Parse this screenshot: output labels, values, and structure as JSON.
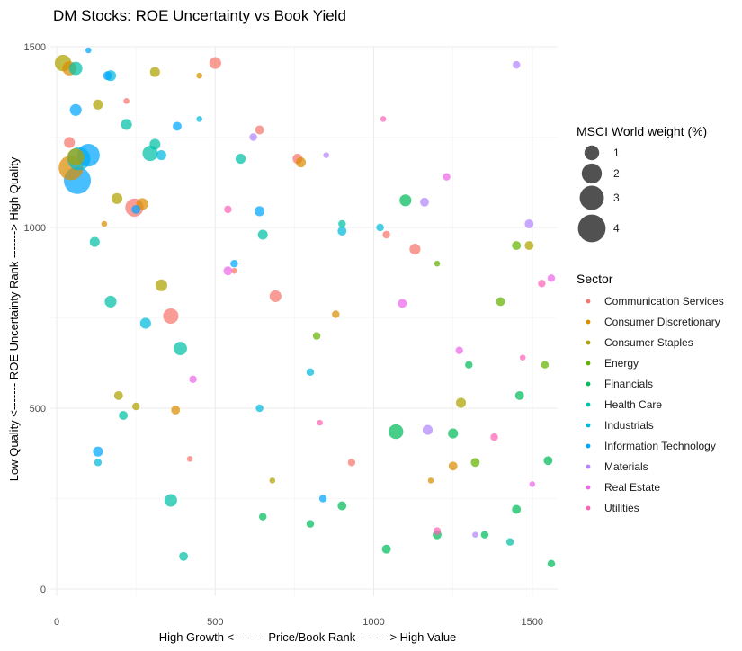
{
  "chart_data": {
    "type": "scatter",
    "title": "DM Stocks: ROE Uncertainty vs Book Yield",
    "xlabel": "High Growth <-------- Price/Book Rank --------> High Value",
    "ylabel": "Low Quality <------- ROE Uncertainty Rank -------> High Quality",
    "xlim": [
      -20,
      1580
    ],
    "ylim": [
      -20,
      1500
    ],
    "x_ticks": [
      0,
      500,
      1000,
      1500
    ],
    "y_ticks": [
      0,
      500,
      1000,
      1500
    ],
    "grid": true,
    "size_legend": {
      "title": "MSCI World weight (%)",
      "values": [
        1,
        2,
        3,
        4
      ]
    },
    "color_legend": {
      "title": "Sector",
      "placement": "right"
    },
    "series": [
      {
        "name": "Communication Services",
        "color": "#F8766D",
        "points": [
          [
            245,
            1055,
            1.6
          ],
          [
            500,
            1455,
            0.6
          ],
          [
            360,
            755,
            1.1
          ],
          [
            690,
            810,
            0.6
          ],
          [
            1130,
            940,
            0.5
          ],
          [
            40,
            1235,
            0.5
          ],
          [
            760,
            1190,
            0.4
          ],
          [
            640,
            1270,
            0.3
          ],
          [
            930,
            350,
            0.2
          ],
          [
            1040,
            980,
            0.2
          ],
          [
            420,
            360,
            0.1
          ],
          [
            220,
            1350,
            0.1
          ],
          [
            560,
            880,
            0.1
          ]
        ]
      },
      {
        "name": "Consumer Discretionary",
        "color": "#DB8E00",
        "points": [
          [
            45,
            1165,
            3.1
          ],
          [
            40,
            1440,
            0.9
          ],
          [
            270,
            1065,
            0.6
          ],
          [
            770,
            1180,
            0.4
          ],
          [
            1250,
            340,
            0.3
          ],
          [
            375,
            495,
            0.3
          ],
          [
            880,
            760,
            0.2
          ],
          [
            1180,
            300,
            0.1
          ],
          [
            450,
            1420,
            0.1
          ],
          [
            150,
            1010,
            0.1
          ]
        ]
      },
      {
        "name": "Consumer Staples",
        "color": "#AEA200",
        "points": [
          [
            20,
            1455,
            1.3
          ],
          [
            60,
            1195,
            1.4
          ],
          [
            190,
            1080,
            0.5
          ],
          [
            330,
            840,
            0.6
          ],
          [
            310,
            1430,
            0.4
          ],
          [
            130,
            1340,
            0.4
          ],
          [
            1275,
            515,
            0.4
          ],
          [
            1490,
            950,
            0.3
          ],
          [
            195,
            535,
            0.3
          ],
          [
            250,
            505,
            0.2
          ],
          [
            680,
            300,
            0.1
          ]
        ]
      },
      {
        "name": "Energy",
        "color": "#64B200",
        "points": [
          [
            1450,
            950,
            0.3
          ],
          [
            1400,
            795,
            0.3
          ],
          [
            1320,
            350,
            0.3
          ],
          [
            1540,
            620,
            0.2
          ],
          [
            820,
            700,
            0.2
          ],
          [
            1200,
            900,
            0.1
          ]
        ]
      },
      {
        "name": "Financials",
        "color": "#00BD5C",
        "points": [
          [
            1070,
            435,
            1.0
          ],
          [
            1100,
            1075,
            0.6
          ],
          [
            1250,
            430,
            0.4
          ],
          [
            1460,
            535,
            0.3
          ],
          [
            1550,
            355,
            0.3
          ],
          [
            1450,
            220,
            0.3
          ],
          [
            1040,
            110,
            0.3
          ],
          [
            900,
            230,
            0.3
          ],
          [
            1200,
            150,
            0.3
          ],
          [
            800,
            180,
            0.2
          ],
          [
            1300,
            620,
            0.2
          ],
          [
            1350,
            150,
            0.2
          ],
          [
            650,
            200,
            0.2
          ],
          [
            1560,
            70,
            0.2
          ]
        ]
      },
      {
        "name": "Health Care",
        "color": "#00C1A7",
        "points": [
          [
            295,
            1205,
            1.1
          ],
          [
            60,
            1440,
            0.8
          ],
          [
            390,
            665,
            0.8
          ],
          [
            360,
            245,
            0.7
          ],
          [
            310,
            1230,
            0.5
          ],
          [
            220,
            1285,
            0.5
          ],
          [
            170,
            795,
            0.6
          ],
          [
            650,
            980,
            0.4
          ],
          [
            580,
            1190,
            0.4
          ],
          [
            120,
            960,
            0.4
          ],
          [
            400,
            90,
            0.3
          ],
          [
            210,
            480,
            0.3
          ],
          [
            1430,
            130,
            0.2
          ],
          [
            900,
            1010,
            0.2
          ]
        ]
      },
      {
        "name": "Industrials",
        "color": "#00BADE",
        "points": [
          [
            70,
            1190,
            2.7
          ],
          [
            280,
            735,
            0.5
          ],
          [
            170,
            1420,
            0.5
          ],
          [
            330,
            1200,
            0.4
          ],
          [
            900,
            990,
            0.3
          ],
          [
            1020,
            1000,
            0.2
          ],
          [
            640,
            500,
            0.2
          ],
          [
            130,
            350,
            0.2
          ],
          [
            800,
            600,
            0.2
          ],
          [
            450,
            1300,
            0.1
          ]
        ]
      },
      {
        "name": "Information Technology",
        "color": "#00A6FF",
        "points": [
          [
            65,
            1130,
            3.8
          ],
          [
            100,
            1200,
            2.6
          ],
          [
            60,
            1325,
            0.6
          ],
          [
            640,
            1045,
            0.4
          ],
          [
            130,
            380,
            0.4
          ],
          [
            250,
            1050,
            0.3
          ],
          [
            160,
            1420,
            0.3
          ],
          [
            380,
            1280,
            0.3
          ],
          [
            840,
            250,
            0.2
          ],
          [
            560,
            900,
            0.2
          ],
          [
            100,
            1490,
            0.1
          ]
        ]
      },
      {
        "name": "Materials",
        "color": "#B385FF",
        "points": [
          [
            1170,
            440,
            0.4
          ],
          [
            1490,
            1010,
            0.3
          ],
          [
            1160,
            1070,
            0.3
          ],
          [
            1450,
            1450,
            0.2
          ],
          [
            620,
            1250,
            0.2
          ],
          [
            1320,
            150,
            0.1
          ],
          [
            850,
            1200,
            0.1
          ]
        ]
      },
      {
        "name": "Real Estate",
        "color": "#EF67EB",
        "points": [
          [
            1090,
            790,
            0.3
          ],
          [
            540,
            880,
            0.3
          ],
          [
            1560,
            860,
            0.2
          ],
          [
            1270,
            660,
            0.2
          ],
          [
            1230,
            1140,
            0.2
          ],
          [
            430,
            580,
            0.2
          ],
          [
            1500,
            290,
            0.1
          ]
        ]
      },
      {
        "name": "Utilities",
        "color": "#FF63B6",
        "points": [
          [
            1530,
            845,
            0.2
          ],
          [
            1380,
            420,
            0.2
          ],
          [
            1200,
            160,
            0.2
          ],
          [
            540,
            1050,
            0.2
          ],
          [
            830,
            460,
            0.1
          ],
          [
            1470,
            640,
            0.1
          ],
          [
            1030,
            1300,
            0.1
          ]
        ]
      }
    ]
  }
}
